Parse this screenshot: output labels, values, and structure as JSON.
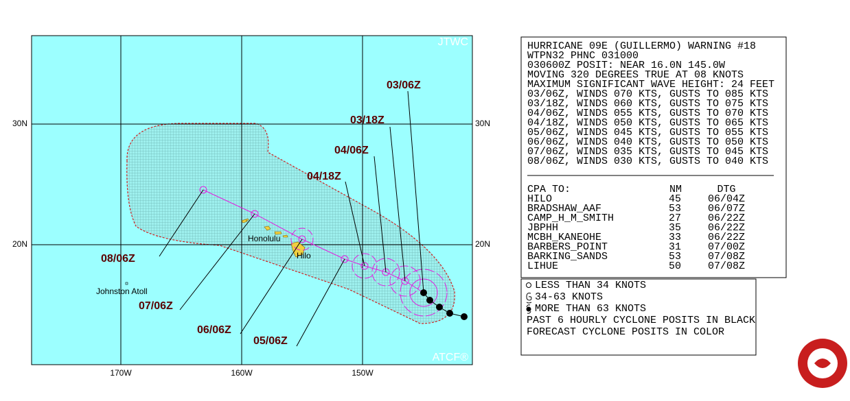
{
  "map": {
    "corner_top": "JTWC",
    "corner_bottom": "ATCF®",
    "lat_labels": [
      "30N",
      "20N"
    ],
    "lon_labels": [
      "170W",
      "160W",
      "150W"
    ],
    "places": [
      "Honolulu",
      "Hilo",
      "Johnston Atoll"
    ],
    "forecast_labels": [
      "03/06Z",
      "03/18Z",
      "04/06Z",
      "04/18Z",
      "05/06Z",
      "06/06Z",
      "07/06Z",
      "08/06Z"
    ]
  },
  "warning": {
    "lines": [
      "HURRICANE 09E (GUILLERMO) WARNING #18",
      "WTPN32 PHNC 031000",
      "030600Z POSIT: NEAR 16.0N 145.0W",
      "MOVING 320 DEGREES TRUE AT 08 KNOTS",
      "MAXIMUM SIGNIFICANT WAVE HEIGHT: 24 FEET",
      "03/06Z, WINDS 070 KTS, GUSTS TO 085 KTS",
      "03/18Z, WINDS 060 KTS, GUSTS TO 075 KTS",
      "04/06Z, WINDS 055 KTS, GUSTS TO 070 KTS",
      "04/18Z, WINDS 050 KTS, GUSTS TO 065 KTS",
      "05/06Z, WINDS 045 KTS, GUSTS TO 055 KTS",
      "06/06Z, WINDS 040 KTS, GUSTS TO 050 KTS",
      "07/06Z, WINDS 035 KTS, GUSTS TO 045 KTS",
      "08/06Z, WINDS 030 KTS, GUSTS TO 040 KTS"
    ]
  },
  "cpa": {
    "header": [
      "CPA TO:",
      "NM",
      "DTG"
    ],
    "rows": [
      [
        "HILO",
        "45",
        "06/04Z"
      ],
      [
        "BRADSHAW_AAF",
        "53",
        "06/07Z"
      ],
      [
        "CAMP_H_M_SMITH",
        "27",
        "06/22Z"
      ],
      [
        "JBPHH",
        "35",
        "06/22Z"
      ],
      [
        "MCBH_KANEOHE",
        "33",
        "06/22Z"
      ],
      [
        "BARBERS_POINT",
        "31",
        "07/00Z"
      ],
      [
        "BARKING_SANDS",
        "53",
        "07/08Z"
      ],
      [
        "LIHUE",
        "50",
        "07/08Z"
      ]
    ]
  },
  "legend": {
    "lines": [
      "LESS THAN 34 KNOTS",
      "34-63 KNOTS",
      "MORE THAN 63 KNOTS",
      "PAST 6 HOURLY CYCLONE POSITS IN BLACK",
      "FORECAST CYCLONE POSITS IN COLOR"
    ]
  }
}
